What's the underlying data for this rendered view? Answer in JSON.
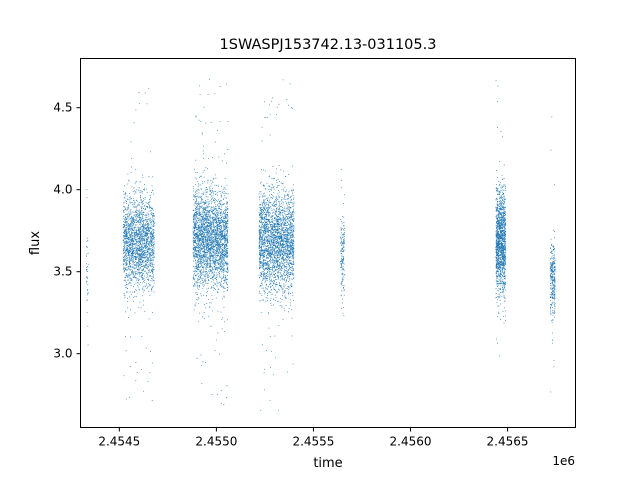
{
  "chart_data": {
    "type": "scatter",
    "title": "1SWASPJ153742.13-031105.3",
    "xlabel": "time",
    "ylabel": "flux",
    "x_offset_label": "1e6",
    "x_scale": 1000000,
    "xlim": [
      2454300,
      2456850
    ],
    "ylim": [
      2.55,
      4.8
    ],
    "x_ticks": [
      {
        "value": 2454500,
        "label": "2.4545"
      },
      {
        "value": 2455000,
        "label": "2.4550"
      },
      {
        "value": 2455500,
        "label": "2.4555"
      },
      {
        "value": 2456000,
        "label": "2.4560"
      },
      {
        "value": 2456500,
        "label": "2.4565"
      }
    ],
    "y_ticks": [
      {
        "value": 3.0,
        "label": "3.0"
      },
      {
        "value": 3.5,
        "label": "3.5"
      },
      {
        "value": 4.0,
        "label": "4.0"
      },
      {
        "value": 4.5,
        "label": "4.5"
      }
    ],
    "grid": false,
    "marker_color": "#1f77b4",
    "series": [
      {
        "clusters": [
          {
            "start": 2454330,
            "end": 2454340,
            "center": 3.5,
            "spread": 0.15,
            "min": 3.05,
            "max": 4.05,
            "count": 40
          },
          {
            "start": 2454520,
            "end": 2454680,
            "center": 3.68,
            "spread": 0.14,
            "min": 2.7,
            "max": 4.62,
            "count": 2000
          },
          {
            "start": 2454880,
            "end": 2455060,
            "center": 3.7,
            "spread": 0.15,
            "min": 2.65,
            "max": 4.7,
            "count": 2800
          },
          {
            "start": 2455220,
            "end": 2455400,
            "center": 3.68,
            "spread": 0.15,
            "min": 2.63,
            "max": 4.67,
            "count": 2600
          },
          {
            "start": 2455640,
            "end": 2455660,
            "center": 3.6,
            "spread": 0.12,
            "min": 3.2,
            "max": 4.13,
            "count": 160
          },
          {
            "start": 2456440,
            "end": 2456490,
            "center": 3.68,
            "spread": 0.16,
            "min": 2.98,
            "max": 4.69,
            "count": 1400
          },
          {
            "start": 2456720,
            "end": 2456745,
            "center": 3.45,
            "spread": 0.12,
            "min": 2.72,
            "max": 4.61,
            "count": 300
          }
        ]
      }
    ]
  }
}
